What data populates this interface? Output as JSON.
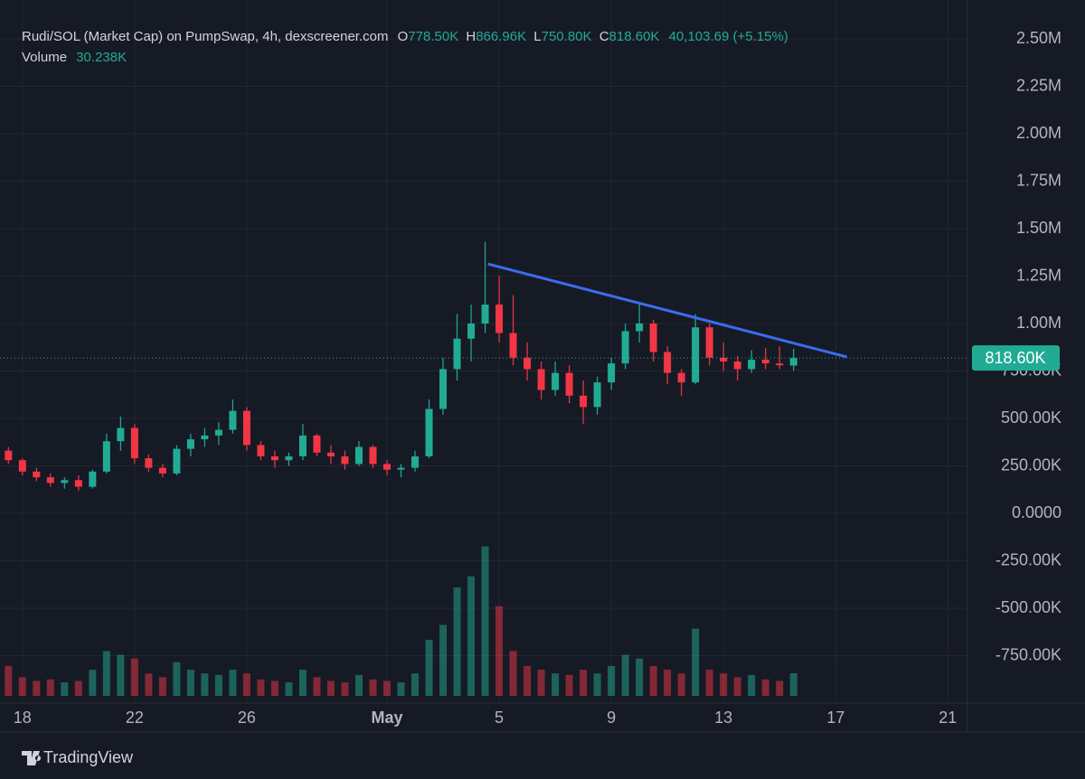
{
  "chart_data": {
    "type": "candlestick",
    "legend": {
      "title": "Rudi/SOL (Market Cap) on PumpSwap, 4h, dexscreener.com",
      "o": "O",
      "h": "H",
      "l": "L",
      "c": "C",
      "values": [
        "778.50K",
        "866.96K",
        "750.80K",
        "818.60K"
      ],
      "change": "40,103.69 (+5.15%)",
      "volume_label": "Volume",
      "volume_value": "30.238K"
    },
    "up_color": "#22ab94",
    "down_color": "#f23645",
    "trend_color": "#3b6cf0",
    "grid": true,
    "candles": {
      "x": [
        17.5,
        18,
        18.5,
        19,
        19.5,
        20,
        20.5,
        21,
        21.5,
        22,
        22.5,
        23,
        23.5,
        24,
        24.5,
        25,
        25.5,
        26,
        26.5,
        27,
        27.5,
        28,
        28.5,
        29,
        29.5,
        30,
        30.5,
        31,
        31.5,
        32,
        32.5,
        33,
        33.5,
        34,
        34.5,
        35,
        35.5,
        36,
        36.5,
        37,
        37.5,
        38,
        38.5,
        39,
        39.5,
        40,
        40.5,
        41,
        41.5,
        42,
        42.5,
        43,
        43.5,
        44,
        44.5,
        45,
        45.5
      ],
      "open": [
        330000,
        280000,
        220000,
        190000,
        160000,
        175000,
        140000,
        220000,
        380000,
        450000,
        290000,
        240000,
        210000,
        340000,
        390000,
        410000,
        440000,
        540000,
        360000,
        300000,
        280000,
        300000,
        410000,
        320000,
        300000,
        260000,
        350000,
        260000,
        230000,
        240000,
        300000,
        550000,
        760000,
        920000,
        1000000,
        1100000,
        950000,
        820000,
        760000,
        650000,
        740000,
        620000,
        560000,
        690000,
        790000,
        960000,
        1000000,
        850000,
        740000,
        690000,
        980000,
        820000,
        800000,
        760000,
        810000,
        790000,
        778500
      ],
      "high": [
        350000,
        290000,
        240000,
        210000,
        190000,
        200000,
        230000,
        420000,
        510000,
        470000,
        310000,
        260000,
        360000,
        420000,
        450000,
        480000,
        600000,
        560000,
        380000,
        330000,
        320000,
        470000,
        420000,
        360000,
        330000,
        380000,
        360000,
        280000,
        260000,
        330000,
        600000,
        820000,
        1050000,
        1100000,
        1430000,
        1250000,
        1150000,
        900000,
        800000,
        800000,
        780000,
        700000,
        720000,
        820000,
        1000000,
        1100000,
        1020000,
        880000,
        760000,
        1050000,
        1000000,
        900000,
        830000,
        860000,
        870000,
        880000,
        866960
      ],
      "low": [
        260000,
        200000,
        170000,
        140000,
        130000,
        120000,
        130000,
        210000,
        330000,
        260000,
        220000,
        190000,
        200000,
        300000,
        350000,
        360000,
        420000,
        330000,
        280000,
        240000,
        250000,
        280000,
        300000,
        260000,
        230000,
        250000,
        240000,
        200000,
        190000,
        220000,
        290000,
        520000,
        700000,
        800000,
        950000,
        900000,
        780000,
        700000,
        600000,
        620000,
        580000,
        470000,
        520000,
        650000,
        760000,
        900000,
        800000,
        680000,
        620000,
        680000,
        780000,
        750000,
        700000,
        740000,
        760000,
        760000,
        750800
      ],
      "close": [
        280000,
        220000,
        190000,
        160000,
        175000,
        140000,
        220000,
        380000,
        450000,
        290000,
        240000,
        210000,
        340000,
        390000,
        410000,
        440000,
        540000,
        360000,
        300000,
        280000,
        300000,
        410000,
        320000,
        300000,
        260000,
        350000,
        260000,
        230000,
        240000,
        300000,
        550000,
        760000,
        920000,
        1000000,
        1100000,
        950000,
        820000,
        760000,
        650000,
        740000,
        620000,
        560000,
        690000,
        790000,
        960000,
        1000000,
        850000,
        740000,
        690000,
        980000,
        820000,
        800000,
        760000,
        810000,
        790000,
        780000,
        818600
      ]
    },
    "volume": [
      40000,
      25000,
      20000,
      22000,
      18000,
      20000,
      35000,
      60000,
      55000,
      50000,
      30000,
      25000,
      45000,
      35000,
      30000,
      28000,
      35000,
      30000,
      22000,
      20000,
      18000,
      35000,
      25000,
      20000,
      18000,
      28000,
      22000,
      20000,
      18000,
      30000,
      75000,
      95000,
      145000,
      160000,
      200000,
      120000,
      60000,
      40000,
      35000,
      30000,
      28000,
      35000,
      30000,
      40000,
      55000,
      50000,
      40000,
      35000,
      30000,
      90000,
      35000,
      30000,
      25000,
      28000,
      22000,
      20000,
      30238
    ],
    "volume_lim": [
      0,
      254000
    ],
    "xlim": [
      17.2,
      51.7
    ],
    "xticks": [
      18,
      22,
      26,
      {
        "value": 31,
        "label": "May"
      },
      {
        "value": 35,
        "label": "5"
      },
      {
        "value": 39,
        "label": "9"
      },
      {
        "value": 43,
        "label": "13"
      },
      {
        "value": 47,
        "label": "17"
      },
      {
        "value": 51,
        "label": "21"
      }
    ],
    "ylim": [
      -1000000,
      2705000
    ],
    "yticks": [
      {
        "value": 2500000,
        "label": "2.50M"
      },
      {
        "value": 2250000,
        "label": "2.25M"
      },
      {
        "value": 2000000,
        "label": "2.00M"
      },
      {
        "value": 1750000,
        "label": "1.75M"
      },
      {
        "value": 1500000,
        "label": "1.50M"
      },
      {
        "value": 1250000,
        "label": "1.25M"
      },
      {
        "value": 1000000,
        "label": "1.00M"
      },
      {
        "value": 750000,
        "label": "750.00K"
      },
      {
        "value": 500000,
        "label": "500.00K"
      },
      {
        "value": 250000,
        "label": "250.00K"
      },
      {
        "value": 0,
        "label": "0.0000"
      },
      {
        "value": -250000,
        "label": "-250.00K"
      },
      {
        "value": -500000,
        "label": "-500.00K"
      },
      {
        "value": -750000,
        "label": "-750.00K"
      }
    ],
    "last_price": {
      "value": 818600,
      "label": "818.60K"
    },
    "trendline": {
      "x": [
        34.6,
        47.4
      ],
      "y": [
        1314000,
        824000
      ]
    },
    "branding": "TradingView"
  }
}
